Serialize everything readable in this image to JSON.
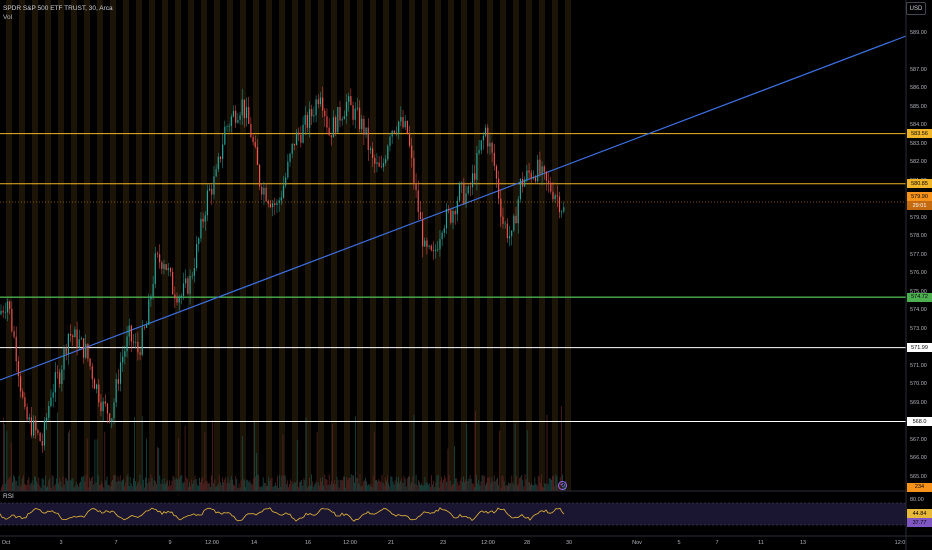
{
  "header": {
    "symbol_line": "SPDR S&P 500 ETF TRUST, 30, Arca",
    "sub_line": "Vol"
  },
  "currency_button": "USD",
  "rsi_label": "RSI",
  "price_axis": [
    "589.00",
    "587.00",
    "586.00",
    "585.00",
    "584.00",
    "583.00",
    "582.00",
    "581.00",
    "579.00",
    "578.00",
    "577.00",
    "576.00",
    "575.00",
    "574.00",
    "573.00",
    "572.00",
    "571.00",
    "570.00",
    "569.00",
    "567.00",
    "566.00",
    "565.00"
  ],
  "price_labels": [
    {
      "text": "583.56",
      "bg": "#f0b428",
      "fg": "#000000"
    },
    {
      "text": "580.85",
      "bg": "#f0b428",
      "fg": "#000000"
    },
    {
      "text": "579.90",
      "bg": "#f7931a",
      "fg": "#000000"
    },
    {
      "text": "29:01",
      "bg": "#c46a10",
      "fg": "#ffffff"
    },
    {
      "text": "574.72",
      "bg": "#4caf50",
      "fg": "#000000"
    },
    {
      "text": "571.99",
      "bg": "#ffffff",
      "fg": "#000000"
    },
    {
      "text": "568.0",
      "bg": "#ffffff",
      "fg": "#000000"
    },
    {
      "text": "234",
      "bg": "#f7931a",
      "fg": "#000000"
    }
  ],
  "rsi_axis": [
    "80.00",
    "44.84",
    "37.77"
  ],
  "time_axis": [
    "Oct",
    "3",
    "7",
    "9",
    "12:00",
    "14",
    "16",
    "12:00",
    "21",
    "23",
    "12:00",
    "28",
    "30",
    "Nov",
    "5",
    "7",
    "11",
    "13",
    "12:0"
  ],
  "colors": {
    "orange_line": "#f0b428",
    "green_line": "#4caf50",
    "white_line": "#ffffff",
    "trend_line": "#3d6fe0",
    "candle_up": "#26a69a",
    "candle_down": "#ef5350",
    "session_band": "#1c1406",
    "rsi_line": "#e8b839",
    "rsi_band": "#1a1530"
  },
  "chart_data": {
    "type": "candlestick",
    "title": "SPDR S&P 500 ETF TRUST, 30, Arca",
    "ylim": [
      564,
      590
    ],
    "x": [
      "Oct",
      "3",
      "7",
      "9",
      "12:00",
      "14",
      "16",
      "12:00",
      "21",
      "23",
      "12:00",
      "28",
      "30",
      "Nov",
      "5",
      "7",
      "11",
      "13",
      "12:0"
    ],
    "horizontal_levels": [
      {
        "value": 583.56,
        "color": "orange"
      },
      {
        "value": 580.85,
        "color": "orange"
      },
      {
        "value": 574.72,
        "color": "green"
      },
      {
        "value": 571.99,
        "color": "white"
      },
      {
        "value": 568.0,
        "color": "white"
      }
    ],
    "last_price": 579.9,
    "volume_last": 234,
    "rsi": {
      "upper": 80.0,
      "values": [
        44.84,
        37.77
      ]
    },
    "close_path": [
      [
        0,
        573.8
      ],
      [
        2,
        574.6
      ],
      [
        4,
        571.8
      ],
      [
        6,
        568.2
      ],
      [
        8,
        567.6
      ],
      [
        10,
        566.8
      ],
      [
        12,
        569.6
      ],
      [
        14,
        570.6
      ],
      [
        16,
        572.8
      ],
      [
        18,
        572.4
      ],
      [
        20,
        571.8
      ],
      [
        22,
        570.2
      ],
      [
        24,
        568.8
      ],
      [
        26,
        568.4
      ],
      [
        28,
        571.2
      ],
      [
        30,
        572.6
      ],
      [
        32,
        571.8
      ],
      [
        34,
        573.2
      ],
      [
        36,
        576.6
      ],
      [
        38,
        576.8
      ],
      [
        40,
        575.2
      ],
      [
        42,
        574.8
      ],
      [
        44,
        575.6
      ],
      [
        46,
        577.8
      ],
      [
        48,
        580.2
      ],
      [
        50,
        581.2
      ],
      [
        52,
        583.8
      ],
      [
        54,
        584.6
      ],
      [
        56,
        585.2
      ],
      [
        58,
        583.6
      ],
      [
        60,
        581.0
      ],
      [
        62,
        580.2
      ],
      [
        64,
        579.6
      ],
      [
        66,
        581.2
      ],
      [
        68,
        583.2
      ],
      [
        70,
        583.8
      ],
      [
        72,
        584.6
      ],
      [
        74,
        586.0
      ],
      [
        76,
        583.6
      ],
      [
        78,
        584.4
      ],
      [
        80,
        585.2
      ],
      [
        82,
        584.6
      ],
      [
        84,
        583.8
      ],
      [
        86,
        582.0
      ],
      [
        88,
        581.4
      ],
      [
        90,
        583.8
      ],
      [
        92,
        584.2
      ],
      [
        94,
        583.6
      ],
      [
        96,
        580.2
      ],
      [
        98,
        577.2
      ],
      [
        100,
        576.8
      ],
      [
        102,
        578.8
      ],
      [
        104,
        579.2
      ],
      [
        106,
        580.4
      ],
      [
        108,
        580.2
      ],
      [
        110,
        582.0
      ],
      [
        112,
        583.8
      ],
      [
        114,
        581.8
      ],
      [
        116,
        578.8
      ],
      [
        118,
        577.8
      ],
      [
        120,
        580.8
      ],
      [
        122,
        581.4
      ],
      [
        124,
        581.6
      ],
      [
        126,
        580.8
      ],
      [
        128,
        580.4
      ],
      [
        130,
        579.4
      ]
    ]
  }
}
